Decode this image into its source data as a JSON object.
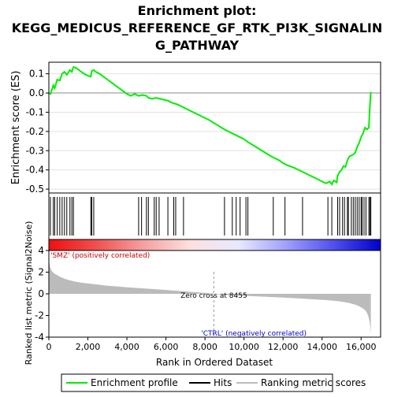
{
  "chart_data": {
    "type": "line",
    "title_lines": [
      "Enrichment plot:",
      "KEGG_MEDICUS_REFERENCE_GF_RTK_PI3K_SIGNALIN",
      "G_PATHWAY"
    ],
    "es_panel": {
      "ylabel": "Enrichment score (ES)",
      "ylim": [
        -0.52,
        0.16
      ],
      "yticks": [
        0.1,
        0.0,
        -0.1,
        -0.2,
        -0.3,
        -0.4,
        -0.5
      ],
      "ytick_labels": [
        "0.1",
        "0.0",
        "-0.1",
        "-0.2",
        "-0.3",
        "-0.4",
        "-0.5"
      ],
      "xlim": [
        0,
        17000
      ],
      "line_color": "#00ee00",
      "series": [
        {
          "name": "Enrichment profile",
          "x": [
            0,
            80,
            230,
            300,
            430,
            560,
            680,
            800,
            920,
            1080,
            1180,
            1260,
            1400,
            1600,
            1800,
            2000,
            2150,
            2200,
            2300,
            2400,
            2600,
            2800,
            3000,
            3200,
            3400,
            3600,
            3800,
            4000,
            4200,
            4400,
            4600,
            4800,
            5000,
            5100,
            5300,
            5500,
            5700,
            5900,
            6100,
            6300,
            6600,
            7000,
            7400,
            7800,
            8200,
            8600,
            9000,
            9400,
            9800,
            10000,
            10200,
            10600,
            11000,
            11400,
            11800,
            12000,
            12200,
            12600,
            13000,
            13400,
            13800,
            14000,
            14200,
            14400,
            14500,
            14600,
            14750,
            14800,
            14900,
            15000,
            15100,
            15200,
            15300,
            15400,
            15600,
            15700,
            15800,
            15900,
            16000,
            16100,
            16200,
            16300,
            16400,
            16450,
            16500
          ],
          "y": [
            0.0,
            -0.005,
            0.04,
            0.025,
            0.07,
            0.065,
            0.1,
            0.11,
            0.095,
            0.12,
            0.11,
            0.135,
            0.13,
            0.115,
            0.1,
            0.09,
            0.085,
            0.115,
            0.12,
            0.11,
            0.1,
            0.085,
            0.07,
            0.055,
            0.04,
            0.025,
            0.01,
            -0.005,
            -0.015,
            -0.005,
            -0.015,
            -0.01,
            -0.015,
            -0.025,
            -0.03,
            -0.025,
            -0.03,
            -0.035,
            -0.04,
            -0.05,
            -0.06,
            -0.08,
            -0.1,
            -0.12,
            -0.14,
            -0.165,
            -0.19,
            -0.21,
            -0.23,
            -0.24,
            -0.255,
            -0.28,
            -0.305,
            -0.33,
            -0.35,
            -0.365,
            -0.375,
            -0.39,
            -0.41,
            -0.43,
            -0.45,
            -0.46,
            -0.47,
            -0.46,
            -0.475,
            -0.455,
            -0.465,
            -0.43,
            -0.41,
            -0.4,
            -0.38,
            -0.385,
            -0.35,
            -0.33,
            -0.32,
            -0.31,
            -0.28,
            -0.26,
            -0.23,
            -0.21,
            -0.18,
            -0.19,
            -0.18,
            -0.07,
            0.005
          ]
        }
      ]
    },
    "hits_panel": {
      "hit_positions": [
        80,
        230,
        300,
        430,
        560,
        680,
        800,
        920,
        1080,
        1180,
        1260,
        2150,
        2200,
        2300,
        4600,
        4750,
        5000,
        5100,
        5400,
        5500,
        5650,
        6100,
        6400,
        6500,
        6900,
        9000,
        9400,
        9600,
        9800,
        10100,
        10200,
        11500,
        12100,
        13000,
        14300,
        14500,
        14800,
        14900,
        15050,
        15150,
        15300,
        15350,
        15500,
        15600,
        15700,
        15800,
        15900,
        16000,
        16050,
        16150,
        16250,
        16400,
        16450,
        16500
      ],
      "gradient_colors": [
        "#ee1010",
        "#f05050",
        "#f6a0a0",
        "#fde0e0",
        "#e8e8ff",
        "#a0a0ff",
        "#5050ee",
        "#0000cc"
      ]
    },
    "metric_panel": {
      "ylabel": "Ranked list metric (Signal2Noise)",
      "ylim": [
        -4,
        4
      ],
      "yticks": [
        4,
        2,
        0,
        -2,
        -4
      ],
      "ytick_labels": [
        "4",
        "2",
        "0",
        "-2",
        "-4"
      ],
      "zero_cross_label": "Zero cross at 8455",
      "zero_cross_x": 8455,
      "pos_label": "'SMZ' (positively correlated)",
      "neg_label": "'CTRL' (negatively correlated)",
      "pos_color": "#cc0000",
      "neg_color": "#0000cc",
      "fill_color": "#bbbbbb",
      "curve_x": [
        0,
        20,
        60,
        120,
        200,
        300,
        450,
        600,
        800,
        1000,
        1300,
        1600,
        2000,
        2500,
        3000,
        3500,
        4000,
        5000,
        6000,
        7000,
        8000,
        8455,
        9000,
        10000,
        11000,
        12000,
        13000,
        14000,
        14500,
        15000,
        15400,
        15700,
        15900,
        16100,
        16200,
        16300,
        16380,
        16440,
        16480,
        16500
      ],
      "curve_y": [
        3.6,
        2.9,
        2.5,
        2.2,
        2.0,
        1.85,
        1.7,
        1.55,
        1.4,
        1.28,
        1.15,
        1.05,
        0.95,
        0.85,
        0.75,
        0.68,
        0.6,
        0.48,
        0.36,
        0.22,
        0.08,
        0.0,
        -0.1,
        -0.18,
        -0.26,
        -0.34,
        -0.44,
        -0.55,
        -0.62,
        -0.72,
        -0.85,
        -1.0,
        -1.15,
        -1.35,
        -1.5,
        -1.75,
        -2.1,
        -2.6,
        -3.2,
        -3.7
      ]
    },
    "xaxis": {
      "xlabel": "Rank in Ordered Dataset",
      "xticks": [
        0,
        2000,
        4000,
        6000,
        8000,
        10000,
        12000,
        14000,
        16000
      ],
      "xtick_labels": [
        "0",
        "2,000",
        "4,000",
        "6,000",
        "8,000",
        "10,000",
        "12,000",
        "14,000",
        "16,000"
      ]
    },
    "legend": {
      "placement": "bottom",
      "items": [
        {
          "label": "Enrichment profile",
          "color": "#00ee00"
        },
        {
          "label": "Hits",
          "color": "#000000"
        },
        {
          "label": "Ranking metric scores",
          "color": "#bbbbbb"
        }
      ]
    }
  }
}
